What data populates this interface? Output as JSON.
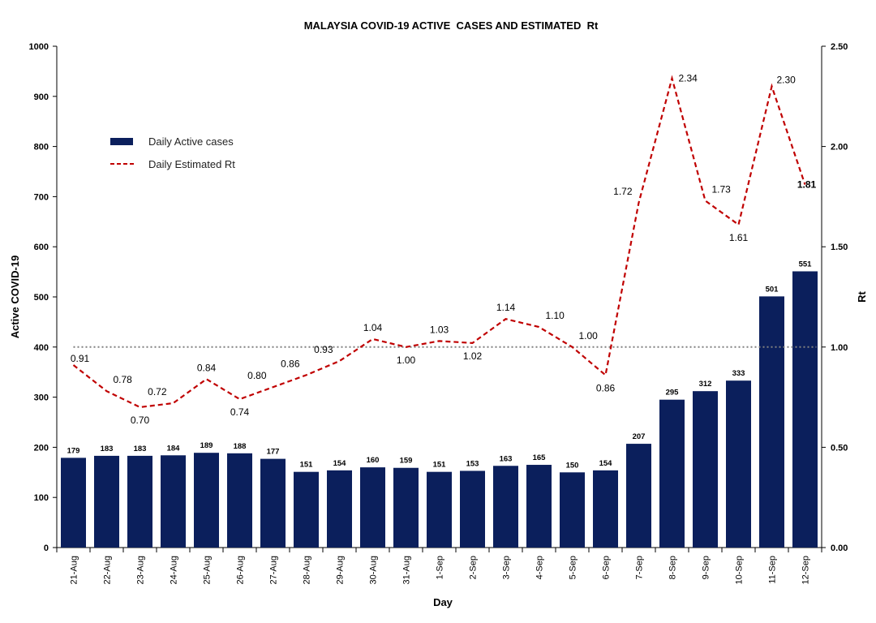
{
  "chart_data": {
    "type": "bar",
    "title": "MALAYSIA COVID-19 ACTIVE  CASES AND ESTIMATED  Rt",
    "xlabel": "Day",
    "ylabel": "Active COVID-19",
    "y2label": "Rt",
    "ylim": [
      0,
      1000
    ],
    "y2lim": [
      0,
      2.5
    ],
    "yticks": [
      "0",
      "100",
      "200",
      "300",
      "400",
      "500",
      "600",
      "700",
      "800",
      "900",
      "1000"
    ],
    "y2ticks": [
      "0.00",
      "0.50",
      "1.00",
      "1.50",
      "2.00",
      "2.50"
    ],
    "categories": [
      "21-Aug",
      "22-Aug",
      "23-Aug",
      "24-Aug",
      "25-Aug",
      "26-Aug",
      "27-Aug",
      "28-Aug",
      "29-Aug",
      "30-Aug",
      "31-Aug",
      "1-Sep",
      "2-Sep",
      "3-Sep",
      "4-Sep",
      "5-Sep",
      "6-Sep",
      "7-Sep",
      "8-Sep",
      "9-Sep",
      "10-Sep",
      "11-Sep",
      "12-Sep"
    ],
    "series": [
      {
        "name": "Daily Active cases",
        "type": "bar",
        "axis": "left",
        "color": "#0b1f5c",
        "values": [
          179,
          183,
          183,
          184,
          189,
          188,
          177,
          151,
          154,
          160,
          159,
          151,
          153,
          163,
          165,
          150,
          154,
          207,
          295,
          312,
          333,
          501,
          551
        ]
      },
      {
        "name": "Daily Estimated Rt",
        "type": "line",
        "style": "dashed",
        "axis": "right",
        "color": "#c00000",
        "values": [
          0.91,
          0.78,
          0.7,
          0.72,
          0.84,
          0.74,
          0.8,
          0.86,
          0.93,
          1.04,
          1.0,
          1.03,
          1.02,
          1.14,
          1.1,
          1.0,
          0.86,
          1.72,
          2.34,
          1.73,
          1.61,
          2.3,
          1.81
        ],
        "labels": [
          "0.91",
          "0.78",
          "0.70",
          "0.72",
          "0.84",
          "0.74",
          "0.80",
          "0.86",
          "0.93",
          "1.04",
          "1.00",
          "1.03",
          "1.02",
          "1.14",
          "1.10",
          "1.00",
          "0.86",
          "1.72",
          "2.34",
          "1.73",
          "1.61",
          "2.30",
          "1.81"
        ]
      }
    ],
    "reference_line": {
      "axis": "right",
      "value": 1.0,
      "style": "dotted",
      "color": "#808080"
    },
    "legend": "upper-left",
    "grid": false
  }
}
